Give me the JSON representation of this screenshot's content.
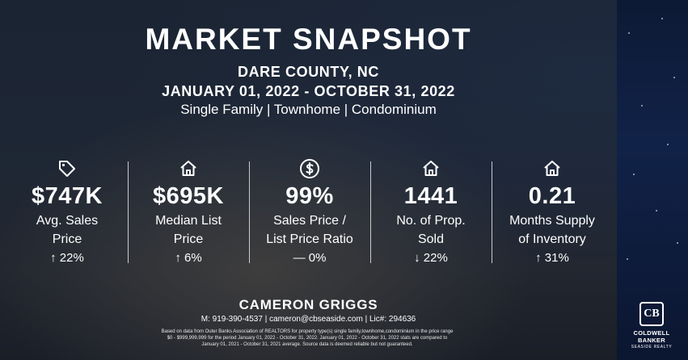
{
  "header": {
    "title": "MARKET SNAPSHOT",
    "location": "DARE COUNTY, NC",
    "date_range": "JANUARY 01, 2022 - OCTOBER 31, 2022",
    "property_types": "Single Family | Townhome | Condominium"
  },
  "stats": [
    {
      "icon": "price-tag-icon",
      "value": "$747K",
      "label_line1": "Avg. Sales",
      "label_line2": "Price",
      "change": "↑ 22%"
    },
    {
      "icon": "house-icon",
      "value": "$695K",
      "label_line1": "Median List",
      "label_line2": "Price",
      "change": "↑ 6%"
    },
    {
      "icon": "dollar-circle-icon",
      "value": "99%",
      "label_line1": "Sales Price /",
      "label_line2": "List Price Ratio",
      "change": "— 0%"
    },
    {
      "icon": "house-icon",
      "value": "1441",
      "label_line1": "No. of Prop.",
      "label_line2": "Sold",
      "change": "↓ 22%"
    },
    {
      "icon": "house-icon",
      "value": "0.21",
      "label_line1": "Months Supply",
      "label_line2": "of Inventory",
      "change": "↑ 31%"
    }
  ],
  "agent": {
    "name": "CAMERON GRIGGS",
    "contact": "M: 919-390-4537 | cameron@cbseaside.com | Lic#: 294636"
  },
  "disclaimer": {
    "line1": "Based on data from Outer Banks Association of REALTORS for property type(s) single family,townhome,condominium in the price range",
    "line2": "$0 - $999,999,999 for the period January 01, 2022 - October 31, 2022. January 01, 2022 - October 31, 2022 stats are compared to",
    "line3": "January 01, 2021 - October 31, 2021 average. Source data is deemed reliable but not guaranteed."
  },
  "brand": {
    "mark": "CB",
    "line1": "COLDWELL",
    "line2": "BANKER",
    "line3": "SEASIDE REALTY"
  }
}
